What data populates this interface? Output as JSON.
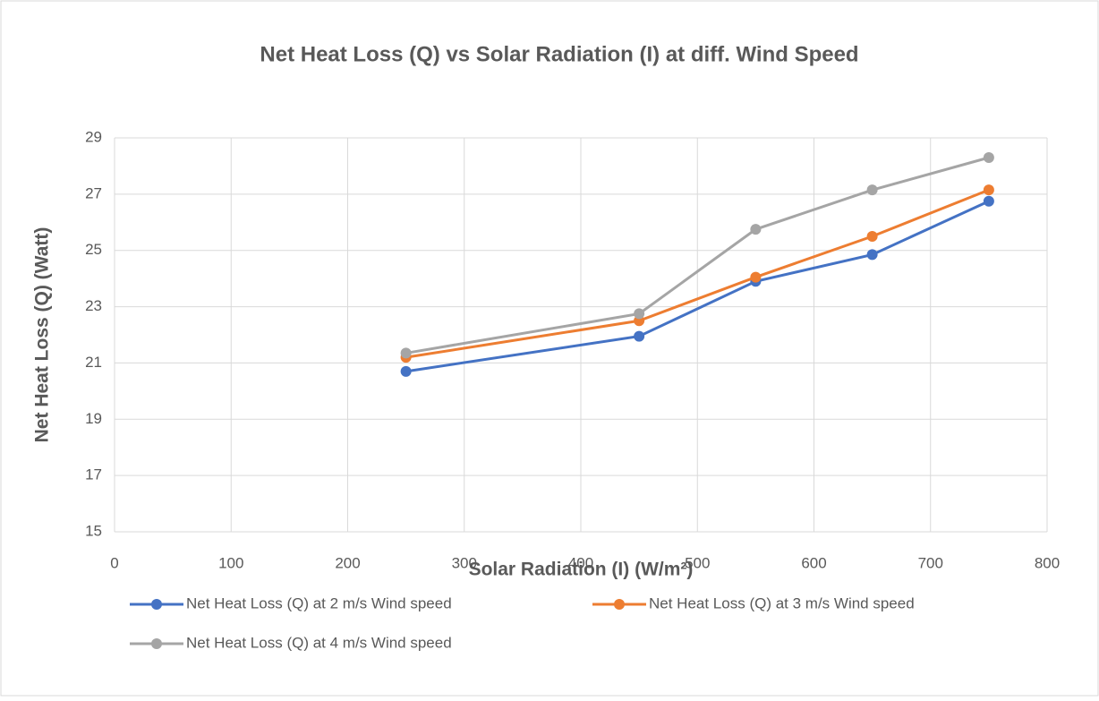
{
  "chart_data": {
    "type": "line",
    "title": "Net Heat Loss (Q) vs Solar Radiation (I) at diff. Wind Speed",
    "x_label": "Solar Radiation (I) (W/m²)",
    "y_label": "Net Heat Loss (Q) (Watt)",
    "x": [
      250,
      450,
      550,
      650,
      750
    ],
    "series": [
      {
        "name": "Net Heat Loss (Q) at 2 m/s Wind speed",
        "color": "#4472c4",
        "values": [
          20.7,
          21.95,
          23.9,
          24.85,
          26.75
        ]
      },
      {
        "name": "Net Heat Loss (Q) at 3 m/s Wind speed",
        "color": "#ed7d31",
        "values": [
          21.2,
          22.5,
          24.05,
          25.5,
          27.15
        ]
      },
      {
        "name": "Net Heat Loss (Q) at 4 m/s Wind speed",
        "color": "#a5a5a5",
        "values": [
          21.35,
          22.75,
          25.75,
          27.15,
          28.3
        ]
      }
    ],
    "xlim": [
      0,
      800
    ],
    "xticks": [
      0,
      100,
      200,
      300,
      400,
      500,
      600,
      700,
      800
    ],
    "ylim": [
      15,
      29
    ],
    "yticks": [
      15,
      17,
      19,
      21,
      23,
      25,
      27,
      29
    ],
    "grid": true,
    "legend": "bottom"
  }
}
